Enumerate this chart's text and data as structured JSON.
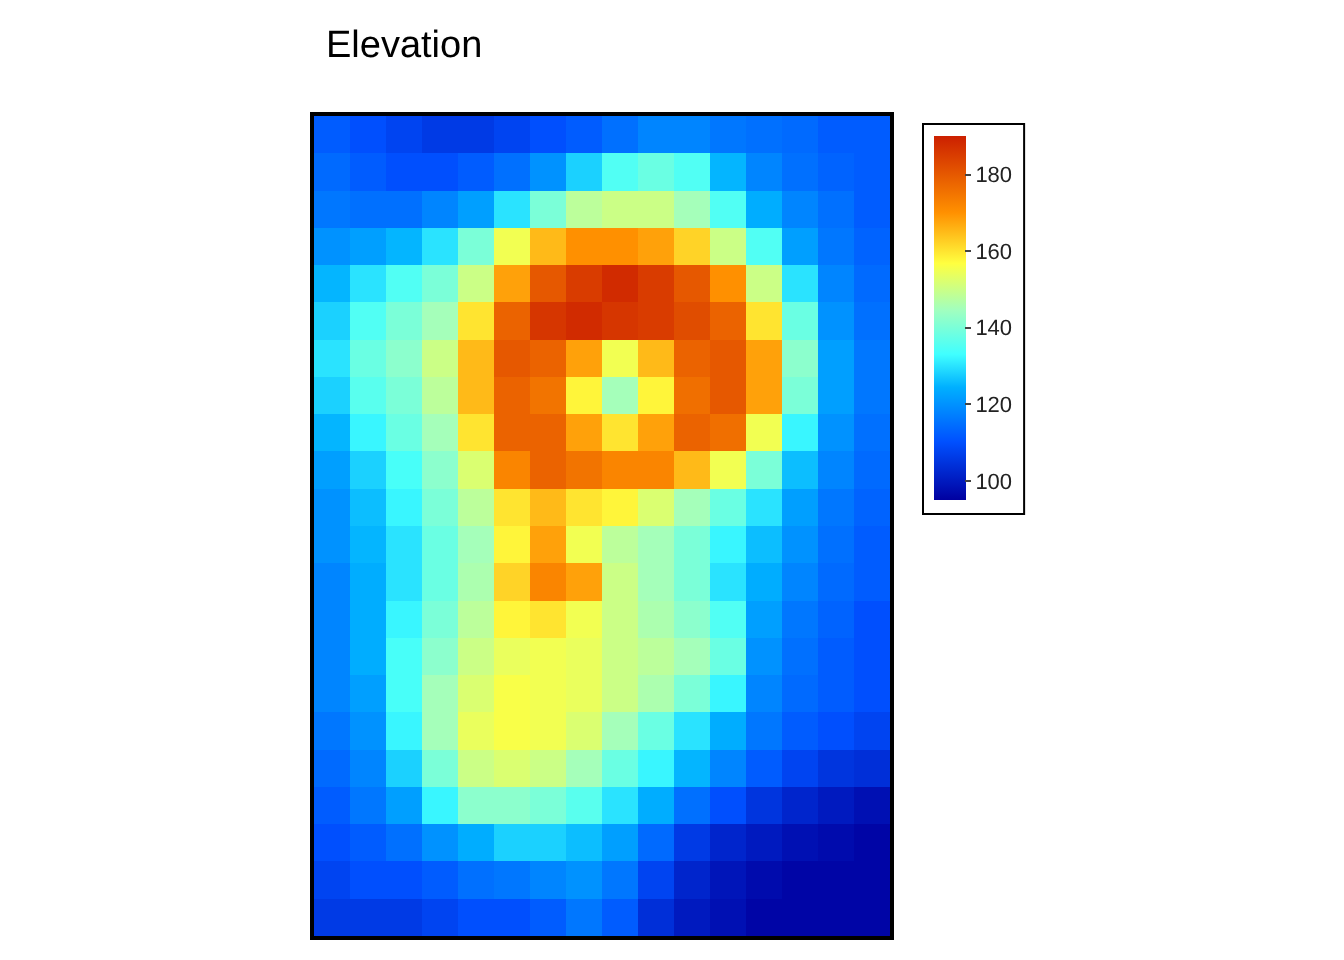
{
  "chart_data": {
    "type": "heatmap",
    "title": "Elevation",
    "categories": [
      null,
      null,
      null,
      null,
      null,
      null,
      null,
      null,
      null,
      null,
      null,
      null,
      null,
      null,
      null,
      null
    ],
    "y_categories": [
      null,
      null,
      null,
      null,
      null,
      null,
      null,
      null,
      null,
      null,
      null,
      null,
      null,
      null,
      null,
      null,
      null,
      null,
      null,
      null,
      null,
      null
    ],
    "cells": [
      [
        112,
        110,
        108,
        106,
        106,
        108,
        110,
        112,
        115,
        118,
        118,
        116,
        115,
        114,
        112,
        112
      ],
      [
        114,
        112,
        110,
        110,
        112,
        115,
        120,
        128,
        135,
        138,
        135,
        125,
        118,
        115,
        113,
        112
      ],
      [
        116,
        115,
        115,
        118,
        122,
        130,
        140,
        148,
        150,
        150,
        145,
        135,
        124,
        118,
        115,
        112
      ],
      [
        120,
        122,
        125,
        130,
        140,
        155,
        165,
        170,
        170,
        168,
        162,
        150,
        135,
        122,
        116,
        113
      ],
      [
        125,
        130,
        135,
        140,
        150,
        168,
        180,
        185,
        188,
        185,
        180,
        170,
        150,
        130,
        118,
        114
      ],
      [
        128,
        135,
        140,
        145,
        160,
        178,
        186,
        188,
        186,
        185,
        182,
        178,
        160,
        138,
        120,
        115
      ],
      [
        130,
        138,
        142,
        150,
        165,
        180,
        178,
        168,
        155,
        165,
        178,
        180,
        168,
        142,
        122,
        116
      ],
      [
        128,
        136,
        140,
        148,
        165,
        178,
        175,
        158,
        145,
        158,
        176,
        180,
        168,
        140,
        122,
        116
      ],
      [
        125,
        132,
        138,
        145,
        160,
        178,
        178,
        168,
        160,
        168,
        178,
        176,
        155,
        132,
        120,
        115
      ],
      [
        122,
        128,
        134,
        142,
        152,
        172,
        178,
        175,
        172,
        172,
        165,
        155,
        140,
        126,
        118,
        114
      ],
      [
        120,
        126,
        132,
        140,
        148,
        160,
        165,
        160,
        158,
        152,
        145,
        138,
        130,
        122,
        116,
        113
      ],
      [
        120,
        125,
        130,
        138,
        145,
        158,
        168,
        155,
        148,
        145,
        140,
        132,
        126,
        120,
        115,
        112
      ],
      [
        118,
        124,
        130,
        138,
        146,
        162,
        172,
        168,
        150,
        145,
        140,
        130,
        124,
        118,
        114,
        112
      ],
      [
        118,
        124,
        132,
        140,
        148,
        158,
        160,
        155,
        150,
        146,
        142,
        135,
        122,
        116,
        113,
        110
      ],
      [
        118,
        124,
        134,
        142,
        150,
        154,
        155,
        154,
        150,
        148,
        145,
        138,
        120,
        115,
        112,
        110
      ],
      [
        118,
        122,
        134,
        145,
        152,
        156,
        155,
        154,
        150,
        146,
        140,
        132,
        118,
        114,
        112,
        110
      ],
      [
        116,
        120,
        132,
        145,
        154,
        156,
        155,
        152,
        145,
        138,
        130,
        124,
        116,
        112,
        110,
        108
      ],
      [
        114,
        118,
        128,
        140,
        150,
        152,
        150,
        145,
        138,
        132,
        125,
        118,
        112,
        108,
        105,
        104
      ],
      [
        112,
        116,
        122,
        132,
        142,
        142,
        140,
        136,
        130,
        124,
        115,
        110,
        105,
        102,
        100,
        98
      ],
      [
        110,
        112,
        115,
        120,
        124,
        128,
        128,
        126,
        122,
        114,
        106,
        102,
        100,
        98,
        97,
        96
      ],
      [
        108,
        110,
        110,
        112,
        115,
        116,
        118,
        120,
        116,
        108,
        102,
        99,
        97,
        96,
        96,
        96
      ],
      [
        106,
        106,
        106,
        108,
        110,
        110,
        112,
        116,
        112,
        104,
        100,
        98,
        96,
        96,
        96,
        96
      ]
    ],
    "clim": [
      95,
      190
    ],
    "cticks": [
      100,
      120,
      140,
      160,
      180
    ]
  }
}
